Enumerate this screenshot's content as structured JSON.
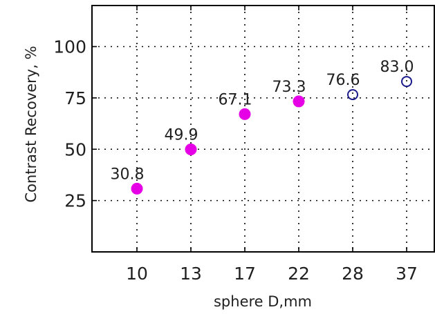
{
  "chart_data": {
    "type": "scatter",
    "xlabel": "sphere D,mm",
    "ylabel": "Contrast Recovery, %",
    "categories": [
      "10",
      "13",
      "17",
      "22",
      "28",
      "37"
    ],
    "series": [
      {
        "marker": "filled-circle",
        "color": "#e600e6",
        "points": [
          {
            "x": "10",
            "y": 30.8,
            "label": "30.8"
          },
          {
            "x": "13",
            "y": 49.9,
            "label": "49.9"
          },
          {
            "x": "17",
            "y": 67.1,
            "label": "67.1"
          },
          {
            "x": "22",
            "y": 73.3,
            "label": "73.3"
          }
        ]
      },
      {
        "marker": "open-circle",
        "color": "#1a1a8c",
        "points": [
          {
            "x": "28",
            "y": 76.6,
            "label": "76.6"
          },
          {
            "x": "37",
            "y": 83.0,
            "label": "83.0"
          }
        ]
      }
    ],
    "y_ticks": [
      25,
      50,
      75,
      100
    ],
    "ylim": [
      0,
      120
    ],
    "grid": true,
    "legend": false
  }
}
